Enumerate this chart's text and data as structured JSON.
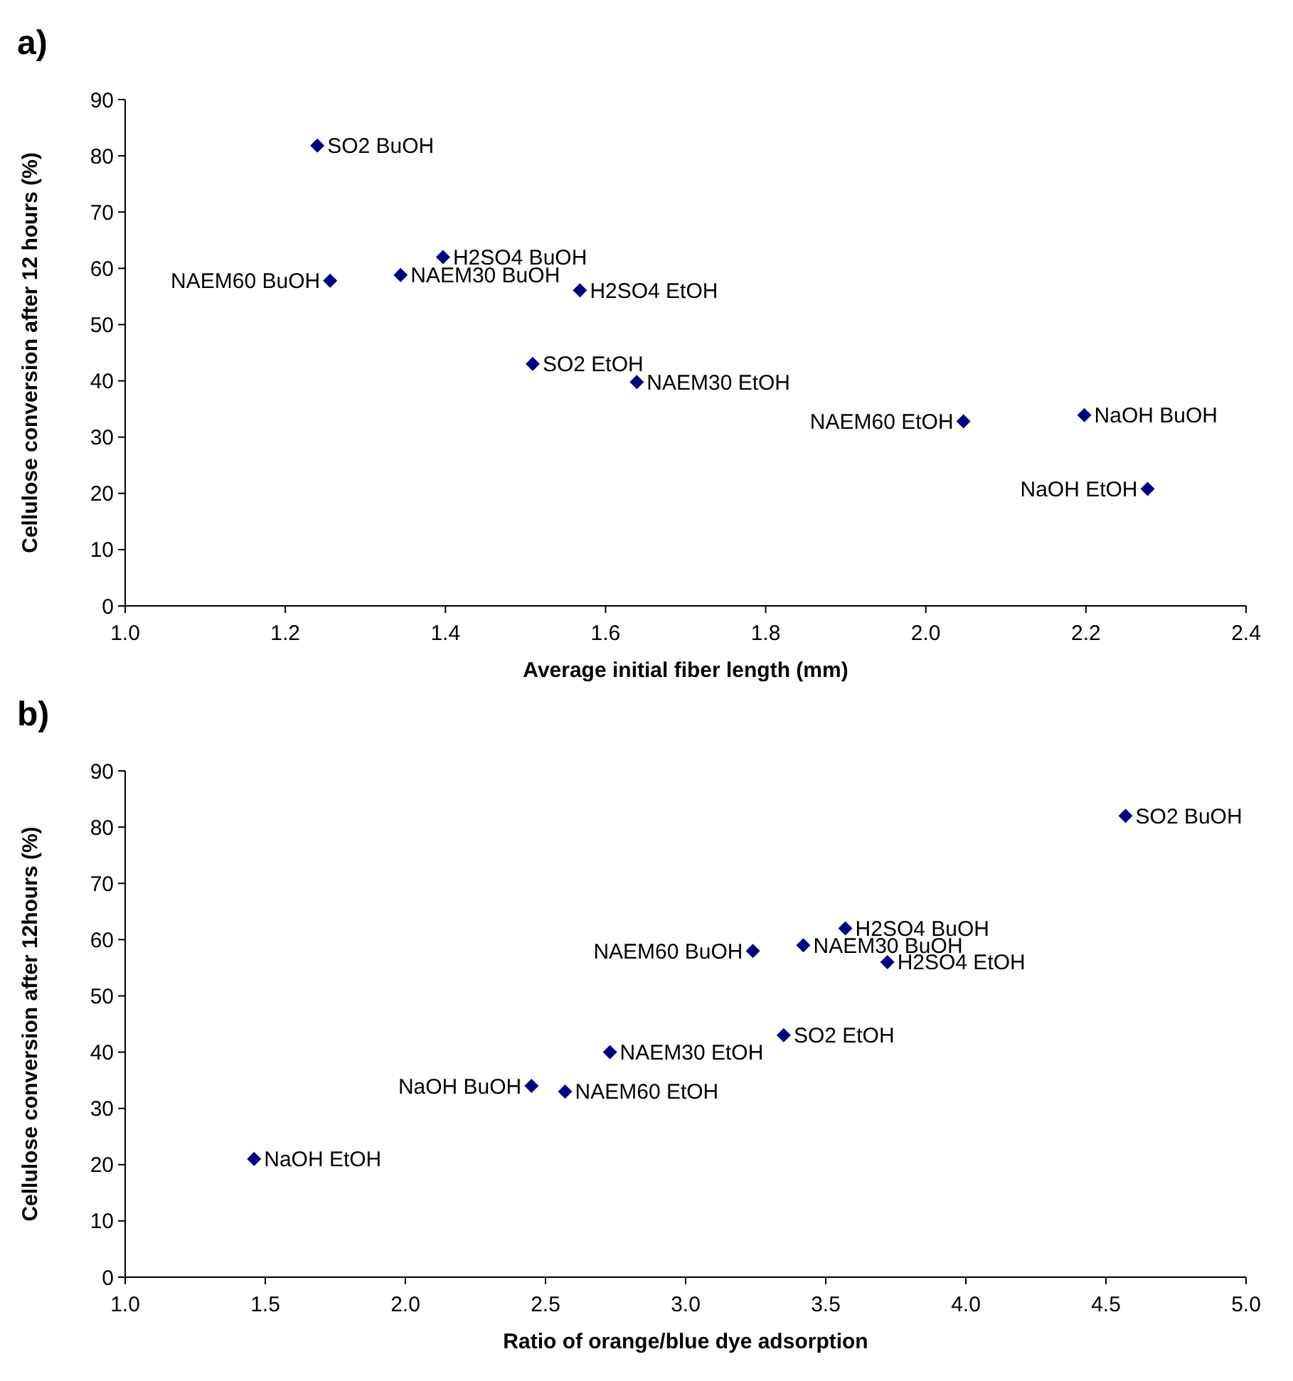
{
  "chart_data": [
    {
      "type": "scatter",
      "title": "a)",
      "xlabel": "Average initial fiber length (mm)",
      "ylabel": "Cellulose conversion after 12 hours (%)",
      "marker": "diamond",
      "color": "#00007f",
      "x": [
        1.24,
        1.256,
        1.344,
        1.397,
        1.568,
        1.509,
        1.639,
        2.047,
        2.198,
        2.277
      ],
      "values": [
        81.8,
        57.8,
        58.8,
        62,
        56.1,
        43,
        39.8,
        32.8,
        33.9,
        20.8
      ],
      "xlim": [
        1.0,
        2.4
      ],
      "xticks": [
        {
          "value": 1.0,
          "label": "1.0"
        },
        {
          "value": 1.2,
          "label": "1.2"
        },
        {
          "value": 1.4,
          "label": "1.4"
        },
        {
          "value": 1.6,
          "label": "1.6"
        },
        {
          "value": 1.8,
          "label": "1.8"
        },
        {
          "value": 2.0,
          "label": "2.0"
        },
        {
          "value": 2.2,
          "label": "2.2"
        },
        {
          "value": 2.4,
          "label": "2.4"
        }
      ],
      "ylim": [
        0,
        90
      ],
      "yticks": [
        0,
        10,
        20,
        30,
        40,
        50,
        60,
        70,
        80,
        90
      ],
      "annotations": [
        {
          "text": "SO2 BuOH",
          "x": 1.24,
          "y": 81.8
        },
        {
          "text": "NAEM60 BuOH",
          "x": 1.256,
          "y": 57.8
        },
        {
          "text": "NAEM30 BuOH",
          "x": 1.344,
          "y": 58.8
        },
        {
          "text": "H2SO4 BuOH",
          "x": 1.397,
          "y": 62
        },
        {
          "text": "H2SO4 EtOH",
          "x": 1.568,
          "y": 56.1
        },
        {
          "text": "SO2 EtOH",
          "x": 1.509,
          "y": 43
        },
        {
          "text": "NAEM30 EtOH",
          "x": 1.639,
          "y": 39.8
        },
        {
          "text": "NAEM60 EtOH",
          "x": 2.047,
          "y": 32.8
        },
        {
          "text": "NaOH BuOH",
          "x": 2.198,
          "y": 33.9
        },
        {
          "text": "NaOH EtOH",
          "x": 2.277,
          "y": 20.8
        }
      ]
    },
    {
      "type": "scatter",
      "title": "b)",
      "xlabel": "Ratio of orange/blue dye adsorption",
      "ylabel": "Cellulose conversion after 12hours (%)",
      "marker": "diamond",
      "color": "#00007f",
      "x": [
        4.57,
        3.24,
        3.42,
        3.57,
        3.72,
        3.35,
        2.73,
        2.57,
        2.45,
        1.46
      ],
      "values": [
        82,
        58,
        59,
        62,
        56,
        43,
        40,
        33,
        34,
        21
      ],
      "xlim": [
        1.0,
        5.0
      ],
      "xticks": [
        {
          "value": 1.0,
          "label": "1.0"
        },
        {
          "value": 1.5,
          "label": "1.5"
        },
        {
          "value": 2.0,
          "label": "2.0"
        },
        {
          "value": 2.5,
          "label": "2.5"
        },
        {
          "value": 3.0,
          "label": "3.0"
        },
        {
          "value": 3.5,
          "label": "3.5"
        },
        {
          "value": 4.0,
          "label": "4.0"
        },
        {
          "value": 4.5,
          "label": "4.5"
        },
        {
          "value": 5.0,
          "label": "5.0"
        }
      ],
      "ylim": [
        0,
        90
      ],
      "yticks": [
        0,
        10,
        20,
        30,
        40,
        50,
        60,
        70,
        80,
        90
      ],
      "annotations": [
        {
          "text": "SO2 BuOH",
          "x": 4.57,
          "y": 82
        },
        {
          "text": "NAEM60 BuOH",
          "x": 3.24,
          "y": 58
        },
        {
          "text": "NAEM30 BuOH",
          "x": 3.42,
          "y": 59
        },
        {
          "text": "H2SO4 BuOH",
          "x": 3.57,
          "y": 62
        },
        {
          "text": "H2SO4 EtOH",
          "x": 3.72,
          "y": 56
        },
        {
          "text": "SO2 EtOH",
          "x": 3.35,
          "y": 43
        },
        {
          "text": "NAEM30 EtOH",
          "x": 2.73,
          "y": 40
        },
        {
          "text": "NAEM60 EtOH",
          "x": 2.57,
          "y": 33
        },
        {
          "text": "NaOH BuOH",
          "x": 2.45,
          "y": 34
        },
        {
          "text": "NaOH EtOH",
          "x": 1.46,
          "y": 21
        }
      ]
    }
  ]
}
